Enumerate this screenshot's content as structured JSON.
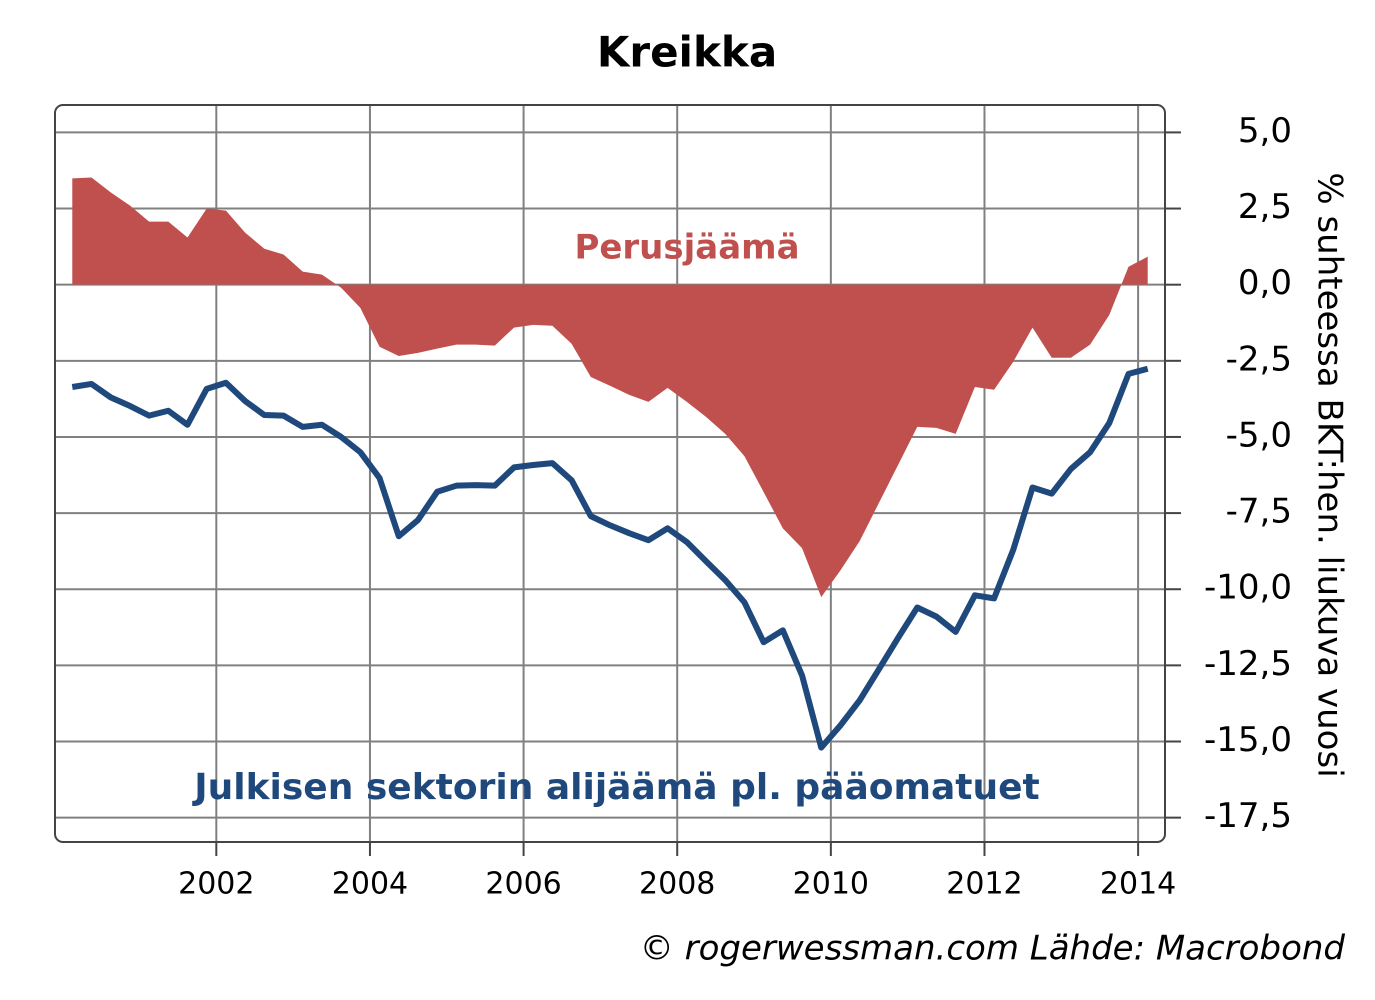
{
  "chart_data": {
    "type": "line",
    "title": "Kreikka",
    "y_axis_label": "% suhteessa BKT:hen. liukuva vuosi",
    "source": "© rogerwessman.com Lähde: Macrobond",
    "annotations": [
      "Perusjäämä",
      "Julkisen sektorin alijäämä pl. pääomatuet"
    ],
    "x": [
      2000.125,
      2000.375,
      2000.625,
      2000.875,
      2001.125,
      2001.375,
      2001.625,
      2001.875,
      2002.125,
      2002.375,
      2002.625,
      2002.875,
      2003.125,
      2003.375,
      2003.625,
      2003.875,
      2004.125,
      2004.375,
      2004.625,
      2004.875,
      2005.125,
      2005.375,
      2005.625,
      2005.875,
      2006.125,
      2006.375,
      2006.625,
      2006.875,
      2007.125,
      2007.375,
      2007.625,
      2007.875,
      2008.125,
      2008.375,
      2008.625,
      2008.875,
      2009.125,
      2009.375,
      2009.625,
      2009.875,
      2010.125,
      2010.375,
      2010.625,
      2010.875,
      2011.125,
      2011.375,
      2011.625,
      2011.875,
      2012.125,
      2012.375,
      2012.625,
      2012.875,
      2013.125,
      2013.375,
      2013.625,
      2013.875,
      2014.125
    ],
    "series": [
      {
        "name": "Perusjäämä",
        "color": "#c0504d",
        "style": "area",
        "values": [
          3.49,
          3.52,
          3.03,
          2.6,
          2.07,
          2.07,
          1.55,
          2.5,
          2.43,
          1.71,
          1.18,
          0.99,
          0.43,
          0.33,
          -0.1,
          -0.76,
          -2.04,
          -2.34,
          -2.24,
          -2.1,
          -1.97,
          -1.97,
          -2.0,
          -1.41,
          -1.32,
          -1.35,
          -1.94,
          -3.03,
          -3.32,
          -3.62,
          -3.85,
          -3.39,
          -3.85,
          -4.34,
          -4.9,
          -5.63,
          -6.81,
          -8.0,
          -8.65,
          -10.26,
          -9.38,
          -8.42,
          -7.17,
          -5.92,
          -4.67,
          -4.7,
          -4.9,
          -3.36,
          -3.45,
          -2.53,
          -1.41,
          -2.4,
          -2.4,
          -1.97,
          -0.99,
          0.59,
          0.92
        ]
      },
      {
        "name": "Julkisen sektorin alijäämä pl. pääomatuet",
        "color": "#1f497d",
        "style": "line",
        "values": [
          -3.36,
          -3.26,
          -3.7,
          -3.98,
          -4.3,
          -4.14,
          -4.6,
          -3.42,
          -3.22,
          -3.82,
          -4.28,
          -4.3,
          -4.67,
          -4.6,
          -5.0,
          -5.5,
          -6.35,
          -8.26,
          -7.73,
          -6.8,
          -6.6,
          -6.58,
          -6.6,
          -6.0,
          -5.92,
          -5.86,
          -6.42,
          -7.6,
          -7.9,
          -8.16,
          -8.39,
          -8.0,
          -8.45,
          -9.08,
          -9.7,
          -10.43,
          -11.74,
          -11.35,
          -12.83,
          -15.2,
          -14.47,
          -13.65,
          -12.63,
          -11.6,
          -10.6,
          -10.9,
          -11.4,
          -10.2,
          -10.3,
          -8.7,
          -6.66,
          -6.86,
          -6.05,
          -5.5,
          -4.54,
          -2.93,
          -2.76
        ]
      }
    ],
    "xlim": [
      1999.9,
      2014.35
    ],
    "xticks": [
      2002,
      2004,
      2006,
      2008,
      2010,
      2012,
      2014
    ],
    "ylim": [
      -18.3,
      5.9
    ],
    "yticks": [
      {
        "value": 5,
        "label": "5,0"
      },
      {
        "value": 2.5,
        "label": "2,5"
      },
      {
        "value": 0,
        "label": "0,0"
      },
      {
        "value": -2.5,
        "label": "-2,5"
      },
      {
        "value": -5,
        "label": "-5,0"
      },
      {
        "value": -7.5,
        "label": "-7,5"
      },
      {
        "value": -10,
        "label": "-10,0"
      },
      {
        "value": -12.5,
        "label": "-12,5"
      },
      {
        "value": -15,
        "label": "-15,0"
      },
      {
        "value": -17.5,
        "label": "-17,5"
      }
    ],
    "grid": true
  }
}
